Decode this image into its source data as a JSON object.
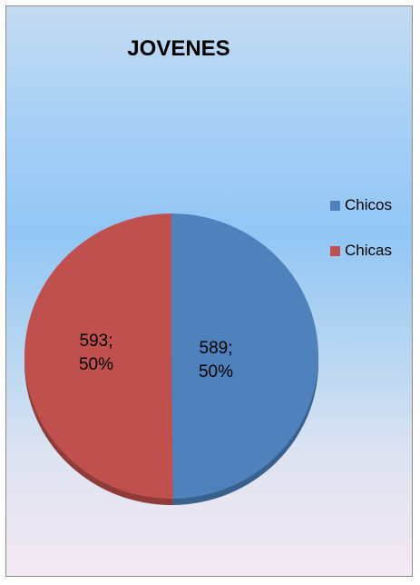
{
  "chart_data": {
    "type": "pie",
    "title": "JOVENES",
    "slices": [
      {
        "name": "Chicos",
        "value": 589,
        "percent": "50%",
        "label": "589;",
        "color": "#4f81bd",
        "side_color": "#3a608e"
      },
      {
        "name": "Chicas",
        "value": 593,
        "percent": "50%",
        "label": "593;",
        "color": "#c0504d",
        "side_color": "#8e3b39"
      }
    ],
    "legend_position": "right"
  }
}
